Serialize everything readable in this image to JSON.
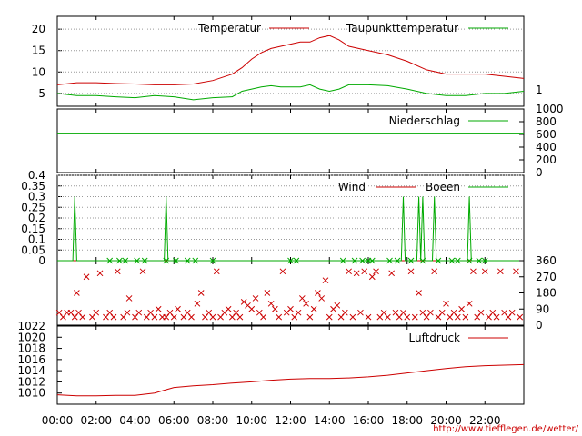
{
  "source_url": "http://www.tiefflegen.de/wetter/",
  "x_axis": {
    "ticks": [
      "00:00",
      "02:00",
      "04:00",
      "06:00",
      "08:00",
      "10:00",
      "12:00",
      "14:00",
      "16:00",
      "18:00",
      "20:00",
      "22:00"
    ],
    "range_hours": [
      0,
      24
    ]
  },
  "colors": {
    "red": "#cc0000",
    "green": "#00aa00",
    "grid": "#999999",
    "axis": "#000000"
  },
  "chart_data": [
    {
      "type": "line",
      "id": "temperature",
      "title": "",
      "ylim": [
        2,
        23
      ],
      "yticks": [
        5,
        10,
        15,
        20
      ],
      "right_tick_labels": [
        "1"
      ],
      "grid": true,
      "legend_position": "top-right",
      "x": [
        0,
        1,
        2,
        3,
        4,
        5,
        6,
        7,
        8,
        9,
        9.5,
        10,
        10.5,
        11,
        11.5,
        12,
        12.5,
        13,
        13.5,
        14,
        14.5,
        15,
        16,
        17,
        18,
        19,
        20,
        21,
        22,
        23,
        24
      ],
      "series": [
        {
          "name": "Temperatur",
          "color_key": "red",
          "values": [
            7,
            7.5,
            7.5,
            7.3,
            7.2,
            7.0,
            7.0,
            7.2,
            8.0,
            9.5,
            11,
            13,
            14.5,
            15.5,
            16,
            16.5,
            17,
            17,
            18,
            18.5,
            17.5,
            16,
            15,
            14,
            12.5,
            10.5,
            9.5,
            9.5,
            9.5,
            9,
            8.5
          ]
        },
        {
          "name": "Taupunkttemperatur",
          "color_key": "green",
          "values": [
            5,
            4.5,
            4.5,
            4.2,
            4.0,
            4.5,
            4.2,
            3.5,
            4.0,
            4.2,
            5.5,
            6.0,
            6.5,
            6.8,
            6.5,
            6.5,
            6.5,
            7.0,
            6.0,
            5.5,
            6.0,
            7.0,
            7.0,
            6.8,
            6.0,
            5.0,
            4.5,
            4.5,
            5.0,
            5.0,
            5.5
          ]
        }
      ]
    },
    {
      "type": "line",
      "id": "precipitation",
      "title": "",
      "ylim": [
        0,
        1000
      ],
      "right_ticks": [
        0,
        200,
        400,
        600,
        800,
        1000
      ],
      "grid": false,
      "legend_position": "top-right",
      "x": [
        0,
        24
      ],
      "series": [
        {
          "name": "Niederschlag",
          "color_key": "green",
          "values": [
            620,
            620
          ]
        }
      ]
    },
    {
      "type": "line",
      "id": "wind",
      "title": "",
      "ylim": [
        0,
        0.4
      ],
      "yticks": [
        0,
        0.05,
        0.1,
        0.15,
        0.2,
        0.25,
        0.3,
        0.35,
        0.4
      ],
      "ytick_labels": [
        "0",
        "0.05",
        "0.1",
        "0.15",
        "0.2",
        "0.25",
        "0.3",
        "0.35",
        "0.4"
      ],
      "grid": true,
      "legend_position": "top-right",
      "series": [
        {
          "name": "Wind",
          "color_key": "red",
          "x": [
            0,
            24
          ],
          "values": [
            0,
            0
          ]
        },
        {
          "name": "Boeen",
          "color_key": "green",
          "x": [
            0,
            0.8,
            0.9,
            1.0,
            5.5,
            5.6,
            5.7,
            17.7,
            17.8,
            17.9,
            18.5,
            18.6,
            18.7,
            18.8,
            18.9,
            19.0,
            19.3,
            19.4,
            19.5,
            21.1,
            21.2,
            21.3,
            24
          ],
          "values": [
            0,
            0,
            0.3,
            0,
            0,
            0.3,
            0,
            0,
            0.3,
            0,
            0,
            0.3,
            0,
            0.3,
            0,
            0,
            0,
            0.3,
            0,
            0,
            0.3,
            0,
            0
          ]
        }
      ],
      "marker_series": [
        {
          "name": "wind-direction-zero-markers",
          "color_key": "green",
          "y": 0,
          "x": [
            2.7,
            3.2,
            3.5,
            4.1,
            4.5,
            5.6,
            6.1,
            6.7,
            7.1,
            8.0,
            12.0,
            12.3,
            14.7,
            15.3,
            15.7,
            16.0,
            16.2,
            17.1,
            17.5,
            18.2,
            18.8,
            19.6,
            20.3,
            20.6,
            21.2,
            21.7,
            22.0
          ]
        }
      ]
    },
    {
      "type": "scatter",
      "id": "wind-direction",
      "title": "",
      "ylim": [
        0,
        360
      ],
      "right_ticks": [
        0,
        90,
        180,
        270,
        360
      ],
      "grid": false,
      "marker": "x",
      "series": [
        {
          "name": "",
          "color_key": "red",
          "points": [
            [
              0.1,
              70
            ],
            [
              0.3,
              45
            ],
            [
              0.5,
              70
            ],
            [
              0.7,
              70
            ],
            [
              0.9,
              45
            ],
            [
              1.0,
              180
            ],
            [
              1.1,
              70
            ],
            [
              1.3,
              45
            ],
            [
              1.5,
              270
            ],
            [
              1.8,
              45
            ],
            [
              2.0,
              70
            ],
            [
              2.2,
              290
            ],
            [
              2.5,
              45
            ],
            [
              2.7,
              70
            ],
            [
              2.9,
              45
            ],
            [
              3.1,
              300
            ],
            [
              3.4,
              45
            ],
            [
              3.6,
              70
            ],
            [
              3.7,
              150
            ],
            [
              4.0,
              45
            ],
            [
              4.2,
              70
            ],
            [
              4.4,
              300
            ],
            [
              4.6,
              45
            ],
            [
              4.8,
              70
            ],
            [
              5.0,
              45
            ],
            [
              5.2,
              90
            ],
            [
              5.4,
              45
            ],
            [
              5.6,
              45
            ],
            [
              5.8,
              70
            ],
            [
              6.0,
              45
            ],
            [
              6.2,
              90
            ],
            [
              6.5,
              45
            ],
            [
              6.7,
              70
            ],
            [
              6.9,
              45
            ],
            [
              7.2,
              120
            ],
            [
              7.4,
              180
            ],
            [
              7.6,
              45
            ],
            [
              7.8,
              70
            ],
            [
              8.0,
              45
            ],
            [
              8.2,
              300
            ],
            [
              8.4,
              45
            ],
            [
              8.6,
              70
            ],
            [
              8.8,
              90
            ],
            [
              9.0,
              45
            ],
            [
              9.2,
              70
            ],
            [
              9.4,
              45
            ],
            [
              9.6,
              130
            ],
            [
              9.8,
              110
            ],
            [
              10.0,
              90
            ],
            [
              10.2,
              150
            ],
            [
              10.4,
              70
            ],
            [
              10.6,
              45
            ],
            [
              10.8,
              180
            ],
            [
              11.0,
              120
            ],
            [
              11.2,
              90
            ],
            [
              11.4,
              45
            ],
            [
              11.6,
              300
            ],
            [
              11.8,
              70
            ],
            [
              12.0,
              90
            ],
            [
              12.2,
              45
            ],
            [
              12.4,
              70
            ],
            [
              12.6,
              150
            ],
            [
              12.8,
              120
            ],
            [
              13.0,
              45
            ],
            [
              13.2,
              90
            ],
            [
              13.4,
              180
            ],
            [
              13.6,
              150
            ],
            [
              13.8,
              250
            ],
            [
              14.0,
              45
            ],
            [
              14.2,
              90
            ],
            [
              14.4,
              110
            ],
            [
              14.6,
              45
            ],
            [
              14.8,
              70
            ],
            [
              15.0,
              300
            ],
            [
              15.2,
              45
            ],
            [
              15.4,
              290
            ],
            [
              15.6,
              70
            ],
            [
              15.8,
              300
            ],
            [
              16.0,
              45
            ],
            [
              16.2,
              270
            ],
            [
              16.4,
              300
            ],
            [
              16.6,
              45
            ],
            [
              16.8,
              70
            ],
            [
              17.0,
              45
            ],
            [
              17.2,
              290
            ],
            [
              17.4,
              70
            ],
            [
              17.6,
              45
            ],
            [
              17.8,
              70
            ],
            [
              18.0,
              45
            ],
            [
              18.2,
              300
            ],
            [
              18.4,
              45
            ],
            [
              18.6,
              180
            ],
            [
              18.8,
              70
            ],
            [
              19.0,
              45
            ],
            [
              19.2,
              70
            ],
            [
              19.4,
              300
            ],
            [
              19.6,
              45
            ],
            [
              19.8,
              70
            ],
            [
              20.0,
              120
            ],
            [
              20.2,
              45
            ],
            [
              20.4,
              70
            ],
            [
              20.6,
              45
            ],
            [
              20.8,
              90
            ],
            [
              21.0,
              45
            ],
            [
              21.2,
              120
            ],
            [
              21.4,
              300
            ],
            [
              21.6,
              45
            ],
            [
              21.8,
              70
            ],
            [
              22.0,
              300
            ],
            [
              22.2,
              45
            ],
            [
              22.4,
              70
            ],
            [
              22.6,
              45
            ],
            [
              22.8,
              300
            ],
            [
              23.0,
              70
            ],
            [
              23.2,
              45
            ],
            [
              23.4,
              70
            ],
            [
              23.6,
              300
            ],
            [
              23.8,
              45
            ]
          ]
        }
      ]
    },
    {
      "type": "line",
      "id": "pressure",
      "title": "",
      "ylim": [
        1008,
        1022
      ],
      "yticks": [
        1010,
        1012,
        1014,
        1016,
        1018,
        1020,
        1022
      ],
      "grid": false,
      "legend_position": "top-right",
      "x": [
        0,
        1,
        2,
        3,
        4,
        5,
        5.5,
        6,
        7,
        8,
        9,
        10,
        11,
        12,
        13,
        14,
        15,
        16,
        17,
        18,
        19,
        20,
        21,
        22,
        23,
        24
      ],
      "series": [
        {
          "name": "Luftdruck",
          "color_key": "red",
          "values": [
            1009.7,
            1009.5,
            1009.5,
            1009.6,
            1009.6,
            1010.0,
            1010.5,
            1011.0,
            1011.3,
            1011.5,
            1011.8,
            1012.0,
            1012.3,
            1012.5,
            1012.6,
            1012.6,
            1012.7,
            1012.9,
            1013.2,
            1013.6,
            1014.0,
            1014.4,
            1014.7,
            1014.9,
            1015.0,
            1015.1
          ]
        }
      ]
    }
  ]
}
